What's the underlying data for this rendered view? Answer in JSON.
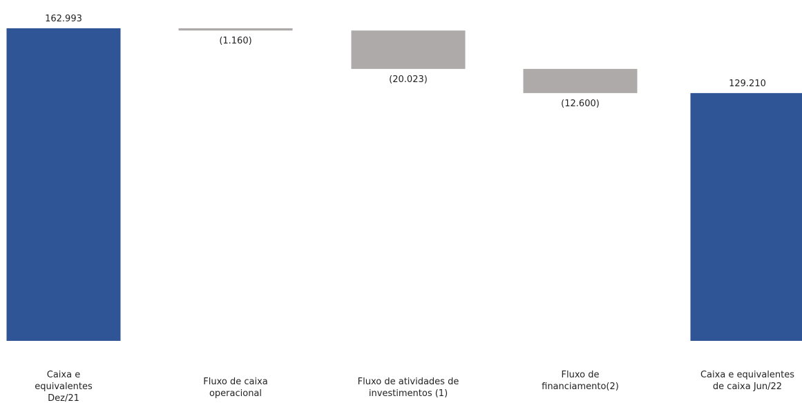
{
  "chart_data": {
    "type": "bar",
    "subtype": "waterfall",
    "categories": [
      [
        "Caixa e",
        "equivalentes",
        "Dez/21"
      ],
      [
        "Fluxo de caixa",
        "operacional"
      ],
      [
        "Fluxo de atividades de",
        "investimentos (1)"
      ],
      [
        "Fluxo de",
        "financiamento(2)"
      ],
      [
        "Caixa e equivalentes",
        "de caixa Jun/22"
      ]
    ],
    "values": [
      162993,
      -1160,
      -20023,
      -12600,
      129210
    ],
    "data_labels": [
      "162.993",
      "(1.160)",
      "(20.023)",
      "(12.600)",
      "129.210"
    ],
    "bar_kinds": [
      "total",
      "delta",
      "delta",
      "delta",
      "total"
    ],
    "ylim": [
      0,
      162993
    ],
    "grid": false,
    "legend": "none",
    "title": "",
    "xlabel": "",
    "ylabel": "",
    "colors": {
      "total": "#2f5597",
      "delta": "#aeaaaa",
      "text": "#222222"
    }
  }
}
